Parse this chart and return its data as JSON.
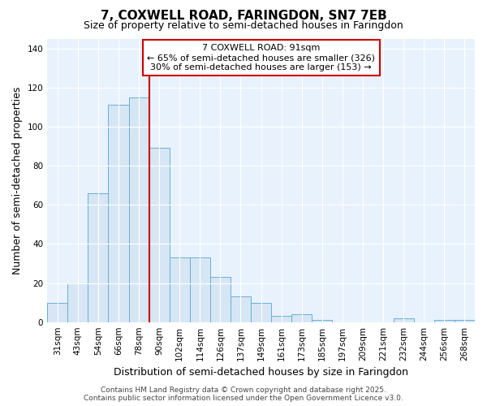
{
  "title": "7, COXWELL ROAD, FARINGDON, SN7 7EB",
  "subtitle": "Size of property relative to semi-detached houses in Faringdon",
  "xlabel": "Distribution of semi-detached houses by size in Faringdon",
  "ylabel": "Number of semi-detached properties",
  "categories": [
    "31sqm",
    "43sqm",
    "54sqm",
    "66sqm",
    "78sqm",
    "90sqm",
    "102sqm",
    "114sqm",
    "126sqm",
    "137sqm",
    "149sqm",
    "161sqm",
    "173sqm",
    "185sqm",
    "197sqm",
    "209sqm",
    "221sqm",
    "232sqm",
    "244sqm",
    "256sqm",
    "268sqm"
  ],
  "values": [
    10,
    20,
    66,
    111,
    115,
    89,
    33,
    33,
    23,
    13,
    10,
    3,
    4,
    1,
    0,
    0,
    0,
    2,
    0,
    1,
    1
  ],
  "bar_color": "#d6e6f5",
  "bar_edge_color": "#6aaed6",
  "vline_color": "#cc0000",
  "vline_index": 5,
  "property_line_label": "7 COXWELL ROAD: 91sqm",
  "annotation_line1": "← 65% of semi-detached houses are smaller (326)",
  "annotation_line2": "30% of semi-detached houses are larger (153) →",
  "annotation_box_facecolor": "#ffffff",
  "annotation_box_edgecolor": "#cc0000",
  "ylim": [
    0,
    145
  ],
  "yticks": [
    0,
    20,
    40,
    60,
    80,
    100,
    120,
    140
  ],
  "background_color": "#ffffff",
  "plot_bg_color": "#e8f2fd",
  "title_fontsize": 11,
  "subtitle_fontsize": 9,
  "axis_label_fontsize": 9,
  "tick_fontsize": 7.5,
  "annotation_fontsize": 8,
  "footer_fontsize": 6.5,
  "footer_line1": "Contains HM Land Registry data © Crown copyright and database right 2025.",
  "footer_line2": "Contains public sector information licensed under the Open Government Licence v3.0."
}
